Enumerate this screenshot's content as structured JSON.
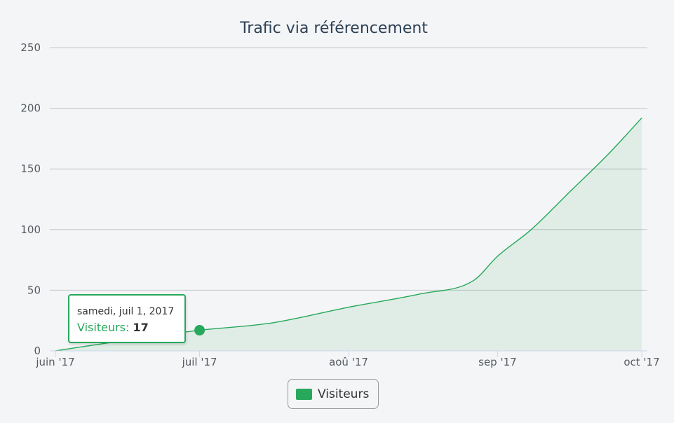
{
  "chart_data": {
    "type": "area",
    "title": "Trafic via référencement",
    "xlabel": "",
    "ylabel": "",
    "x_ticks": [
      "juin '17",
      "juil '17",
      "aoû '17",
      "sep '17",
      "oct '17"
    ],
    "y_ticks": [
      "0",
      "50",
      "100",
      "150",
      "200",
      "250"
    ],
    "ylim": [
      0,
      250
    ],
    "grid": true,
    "legend_position": "bottom-center",
    "series": [
      {
        "name": "Visiteurs",
        "color": "#27a85b",
        "x": [
          "2017-06-01",
          "2017-06-16",
          "2017-07-01",
          "2017-07-16",
          "2017-08-01",
          "2017-08-16",
          "2017-08-27",
          "2017-09-01",
          "2017-09-08",
          "2017-09-16",
          "2017-09-24",
          "2017-10-01"
        ],
        "y": [
          0,
          9,
          17,
          23,
          36,
          47,
          58,
          78,
          100,
          131,
          162,
          192
        ]
      }
    ],
    "tooltip": {
      "date": "samedi, juil 1, 2017",
      "series": "Visiteurs",
      "value": "17",
      "x": "2017-07-01",
      "y": 17
    }
  },
  "legend": {
    "label": "Visiteurs"
  }
}
